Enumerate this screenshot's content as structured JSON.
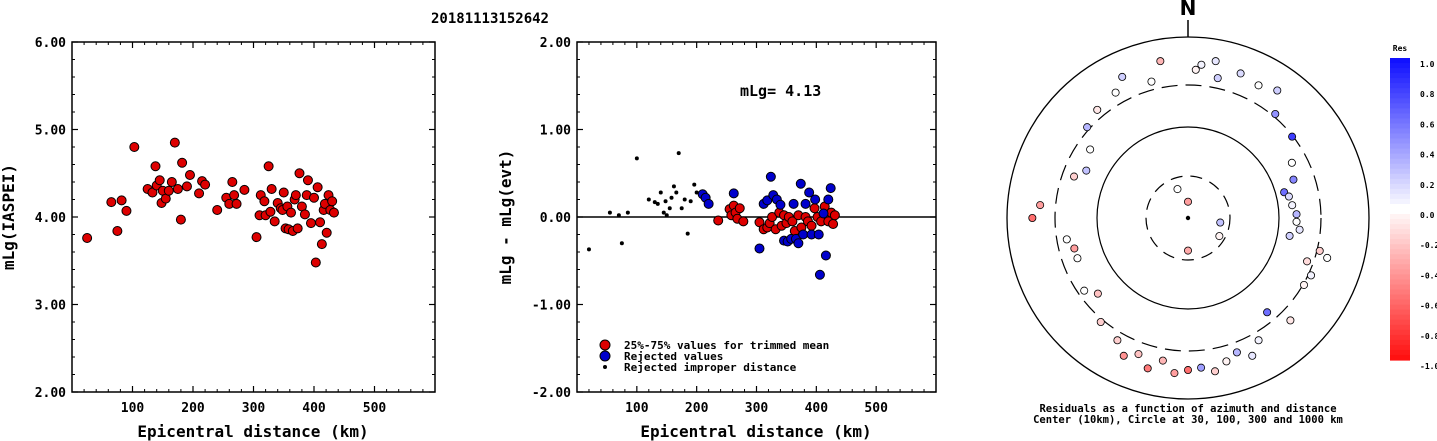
{
  "figure_title": "20181113152642",
  "colors": {
    "trimmed": "#dd0000",
    "rejected": "#0000cc",
    "improper": "#000000"
  },
  "chart_data": [
    {
      "type": "scatter",
      "xlabel": "Epicentral distance (km)",
      "ylabel": "mLg(IASPEI)",
      "xlim": [
        0,
        600
      ],
      "ylim": [
        2.0,
        6.0
      ],
      "xticks": [
        "100",
        "200",
        "300",
        "400",
        "500"
      ],
      "yticks": [
        "2.00",
        "3.00",
        "4.00",
        "5.00",
        "6.00"
      ],
      "series": [
        {
          "color": "#dd0000",
          "points": [
            [
              25,
              3.76
            ],
            [
              65,
              4.17
            ],
            [
              75,
              3.84
            ],
            [
              82,
              4.19
            ],
            [
              90,
              4.07
            ],
            [
              103,
              4.8
            ],
            [
              125,
              4.32
            ],
            [
              133,
              4.28
            ],
            [
              138,
              4.58
            ],
            [
              140,
              4.36
            ],
            [
              145,
              4.42
            ],
            [
              148,
              4.16
            ],
            [
              150,
              4.3
            ],
            [
              155,
              4.21
            ],
            [
              160,
              4.3
            ],
            [
              165,
              4.4
            ],
            [
              170,
              4.85
            ],
            [
              175,
              4.32
            ],
            [
              180,
              3.97
            ],
            [
              182,
              4.62
            ],
            [
              190,
              4.35
            ],
            [
              195,
              4.48
            ],
            [
              210,
              4.27
            ],
            [
              215,
              4.41
            ],
            [
              220,
              4.37
            ],
            [
              240,
              4.08
            ],
            [
              255,
              4.22
            ],
            [
              260,
              4.15
            ],
            [
              265,
              4.4
            ],
            [
              268,
              4.25
            ],
            [
              272,
              4.15
            ],
            [
              285,
              4.31
            ],
            [
              305,
              3.77
            ],
            [
              310,
              4.02
            ],
            [
              312,
              4.25
            ],
            [
              318,
              4.18
            ],
            [
              320,
              4.02
            ],
            [
              325,
              4.58
            ],
            [
              328,
              4.06
            ],
            [
              330,
              4.32
            ],
            [
              335,
              3.95
            ],
            [
              340,
              4.16
            ],
            [
              345,
              4.1
            ],
            [
              348,
              4.08
            ],
            [
              350,
              4.28
            ],
            [
              353,
              3.87
            ],
            [
              356,
              4.12
            ],
            [
              358,
              3.86
            ],
            [
              362,
              4.05
            ],
            [
              365,
              3.84
            ],
            [
              368,
              4.2
            ],
            [
              370,
              4.25
            ],
            [
              373,
              3.87
            ],
            [
              376,
              4.5
            ],
            [
              380,
              4.12
            ],
            [
              385,
              4.03
            ],
            [
              388,
              4.25
            ],
            [
              390,
              4.42
            ],
            [
              395,
              3.93
            ],
            [
              400,
              4.22
            ],
            [
              403,
              3.48
            ],
            [
              406,
              4.34
            ],
            [
              410,
              3.94
            ],
            [
              413,
              3.69
            ],
            [
              416,
              4.08
            ],
            [
              418,
              4.15
            ],
            [
              421,
              3.82
            ],
            [
              424,
              4.25
            ],
            [
              427,
              4.08
            ],
            [
              430,
              4.18
            ],
            [
              433,
              4.05
            ]
          ]
        }
      ]
    },
    {
      "type": "scatter",
      "xlabel": "Epicentral distance (km)",
      "ylabel": "mLg - mLg(evt)",
      "xlim": [
        0,
        600
      ],
      "ylim": [
        -2.0,
        2.0
      ],
      "xticks": [
        "100",
        "200",
        "300",
        "400",
        "500"
      ],
      "yticks": [
        "-2.00",
        "-1.00",
        "0.00",
        "1.00",
        "2.00"
      ],
      "annotation": "mLg= 4.13",
      "legend": [
        "25%-75% values for trimmed mean",
        "Rejected values",
        "Rejected improper distance"
      ],
      "series": [
        {
          "name": "25%-75% values for trimmed mean",
          "color": "#dd0000",
          "points": [
            [
              236,
              -0.04
            ],
            [
              255,
              0.09
            ],
            [
              258,
              0.02
            ],
            [
              262,
              0.13
            ],
            [
              265,
              0.05
            ],
            [
              268,
              -0.02
            ],
            [
              272,
              0.1
            ],
            [
              278,
              -0.05
            ],
            [
              305,
              -0.06
            ],
            [
              312,
              -0.14
            ],
            [
              318,
              -0.12
            ],
            [
              322,
              -0.07
            ],
            [
              326,
              0.0
            ],
            [
              332,
              -0.14
            ],
            [
              338,
              0.05
            ],
            [
              342,
              -0.1
            ],
            [
              346,
              0.02
            ],
            [
              350,
              -0.07
            ],
            [
              354,
              0.0
            ],
            [
              360,
              -0.05
            ],
            [
              364,
              -0.16
            ],
            [
              370,
              0.02
            ],
            [
              375,
              -0.12
            ],
            [
              382,
              0.0
            ],
            [
              386,
              -0.05
            ],
            [
              392,
              -0.1
            ],
            [
              397,
              0.1
            ],
            [
              402,
              0.0
            ],
            [
              408,
              -0.05
            ],
            [
              414,
              0.12
            ],
            [
              420,
              -0.05
            ],
            [
              425,
              0.05
            ],
            [
              428,
              -0.08
            ],
            [
              431,
              0.02
            ]
          ]
        },
        {
          "name": "Rejected values",
          "color": "#0000cc",
          "points": [
            [
              210,
              0.26
            ],
            [
              215,
              0.22
            ],
            [
              220,
              0.15
            ],
            [
              262,
              0.27
            ],
            [
              305,
              -0.36
            ],
            [
              312,
              0.15
            ],
            [
              318,
              0.19
            ],
            [
              324,
              0.46
            ],
            [
              328,
              0.25
            ],
            [
              334,
              0.2
            ],
            [
              340,
              0.14
            ],
            [
              346,
              -0.27
            ],
            [
              352,
              -0.28
            ],
            [
              358,
              -0.25
            ],
            [
              362,
              0.15
            ],
            [
              366,
              -0.25
            ],
            [
              370,
              -0.3
            ],
            [
              374,
              0.38
            ],
            [
              378,
              -0.2
            ],
            [
              382,
              0.15
            ],
            [
              388,
              0.28
            ],
            [
              392,
              -0.2
            ],
            [
              398,
              0.2
            ],
            [
              404,
              -0.2
            ],
            [
              406,
              -0.66
            ],
            [
              412,
              0.04
            ],
            [
              416,
              -0.44
            ],
            [
              420,
              0.2
            ],
            [
              424,
              0.33
            ]
          ]
        },
        {
          "name": "Rejected improper distance",
          "color": "#000000",
          "points": [
            [
              20,
              -0.37
            ],
            [
              55,
              0.05
            ],
            [
              70,
              0.02
            ],
            [
              75,
              -0.3
            ],
            [
              85,
              0.05
            ],
            [
              100,
              0.67
            ],
            [
              120,
              0.2
            ],
            [
              130,
              0.17
            ],
            [
              135,
              0.15
            ],
            [
              140,
              0.28
            ],
            [
              145,
              0.05
            ],
            [
              148,
              0.18
            ],
            [
              150,
              0.02
            ],
            [
              155,
              0.1
            ],
            [
              158,
              0.22
            ],
            [
              162,
              0.35
            ],
            [
              166,
              0.28
            ],
            [
              170,
              0.73
            ],
            [
              175,
              0.1
            ],
            [
              180,
              0.2
            ],
            [
              185,
              -0.19
            ],
            [
              190,
              0.18
            ],
            [
              196,
              0.37
            ],
            [
              200,
              0.28
            ]
          ]
        }
      ]
    },
    {
      "type": "polar",
      "north_label": "N",
      "caption": [
        "Residuals as a function of azimuth and distance",
        "Center (10km), Circle at 30, 100, 300 and 1000 km"
      ],
      "colorbar": {
        "title": "Res",
        "labels": [
          "1.0",
          "0.8",
          "0.6",
          "0.4",
          "0.2",
          "0.0",
          "-0.2",
          "-0.4",
          "-0.6",
          "-0.8",
          "-1.0"
        ]
      },
      "stations": [
        [
          5,
          0.85,
          0.05
        ],
        [
          10,
          0.88,
          0.1
        ],
        [
          3,
          0.82,
          -0.05
        ],
        [
          12,
          0.79,
          0.2
        ],
        [
          20,
          0.85,
          0.15
        ],
        [
          28,
          0.83,
          0.0
        ],
        [
          35,
          0.86,
          0.2
        ],
        [
          40,
          0.75,
          0.45
        ],
        [
          52,
          0.73,
          0.8
        ],
        [
          62,
          0.65,
          0.0
        ],
        [
          70,
          0.62,
          0.5
        ],
        [
          75,
          0.55,
          0.6
        ],
        [
          78,
          0.57,
          0.15
        ],
        [
          83,
          0.58,
          0.05
        ],
        [
          88,
          0.6,
          0.3
        ],
        [
          92,
          0.6,
          0.0
        ],
        [
          96,
          0.62,
          0.1
        ],
        [
          100,
          0.57,
          0.2
        ],
        [
          104,
          0.75,
          -0.2
        ],
        [
          106,
          0.8,
          0.0
        ],
        [
          110,
          0.7,
          -0.15
        ],
        [
          115,
          0.75,
          0.05
        ],
        [
          120,
          0.74,
          -0.05
        ],
        [
          135,
          0.8,
          -0.1
        ],
        [
          140,
          0.68,
          0.6
        ],
        [
          150,
          0.78,
          0.05
        ],
        [
          155,
          0.84,
          0.1
        ],
        [
          160,
          0.79,
          0.3
        ],
        [
          165,
          0.82,
          -0.05
        ],
        [
          170,
          0.86,
          -0.2
        ],
        [
          175,
          0.83,
          0.4
        ],
        [
          180,
          0.84,
          -0.6
        ],
        [
          185,
          0.86,
          -0.4
        ],
        [
          190,
          0.8,
          -0.3
        ],
        [
          195,
          0.86,
          -0.55
        ],
        [
          200,
          0.8,
          -0.25
        ],
        [
          205,
          0.84,
          -0.45
        ],
        [
          210,
          0.78,
          -0.2
        ],
        [
          220,
          0.75,
          -0.2
        ],
        [
          230,
          0.65,
          -0.25
        ],
        [
          235,
          0.7,
          0.0
        ],
        [
          250,
          0.65,
          0.0
        ],
        [
          255,
          0.65,
          -0.4
        ],
        [
          260,
          0.68,
          0.0
        ],
        [
          270,
          0.86,
          -0.6
        ],
        [
          275,
          0.82,
          -0.4
        ],
        [
          290,
          0.67,
          -0.2
        ],
        [
          295,
          0.62,
          0.25
        ],
        [
          305,
          0.66,
          0.0
        ],
        [
          312,
          0.75,
          0.3
        ],
        [
          320,
          0.78,
          -0.1
        ],
        [
          330,
          0.8,
          0.0
        ],
        [
          335,
          0.86,
          0.2
        ],
        [
          345,
          0.78,
          0.0
        ],
        [
          350,
          0.88,
          -0.3
        ],
        [
          180,
          0.18,
          -0.35
        ],
        [
          0,
          0.09,
          -0.4
        ],
        [
          340,
          0.17,
          0.0
        ],
        [
          120,
          0.2,
          -0.05
        ],
        [
          98,
          0.18,
          0.25
        ]
      ]
    }
  ]
}
